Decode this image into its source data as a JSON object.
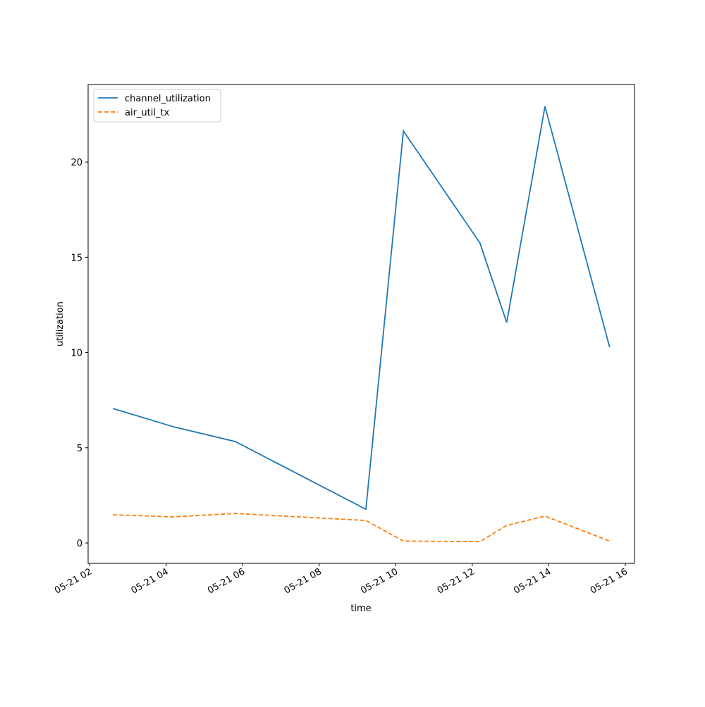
{
  "chart_data": {
    "type": "line",
    "xlabel": "time",
    "ylabel": "utilization",
    "x": [
      2.61,
      4.19,
      5.81,
      9.22,
      10.2,
      12.2,
      12.9,
      13.9,
      15.59
    ],
    "series": [
      {
        "name": "channel_utilization",
        "color": "#1f77b4",
        "linestyle": "solid",
        "values": [
          7.06,
          6.1,
          5.32,
          1.77,
          21.63,
          15.75,
          11.57,
          22.92,
          10.28
        ]
      },
      {
        "name": "air_util_tx",
        "color": "#ff7f0e",
        "linestyle": "dashed",
        "values": [
          1.48,
          1.37,
          1.55,
          1.18,
          0.1,
          0.07,
          0.92,
          1.41,
          0.1
        ]
      }
    ],
    "xlim": [
      1.96,
      16.24
    ],
    "xticks": [
      {
        "value": 2,
        "label": "05-21 02"
      },
      {
        "value": 4,
        "label": "05-21 04"
      },
      {
        "value": 6,
        "label": "05-21 06"
      },
      {
        "value": 8,
        "label": "05-21 08"
      },
      {
        "value": 10,
        "label": "05-21 10"
      },
      {
        "value": 12,
        "label": "05-21 12"
      },
      {
        "value": 14,
        "label": "05-21 14"
      },
      {
        "value": 16,
        "label": "05-21 16"
      }
    ],
    "ylim": [
      -1.07,
      24.07
    ],
    "yticks": [
      0,
      5,
      10,
      15,
      20
    ],
    "grid": false,
    "legend": "upper left"
  }
}
